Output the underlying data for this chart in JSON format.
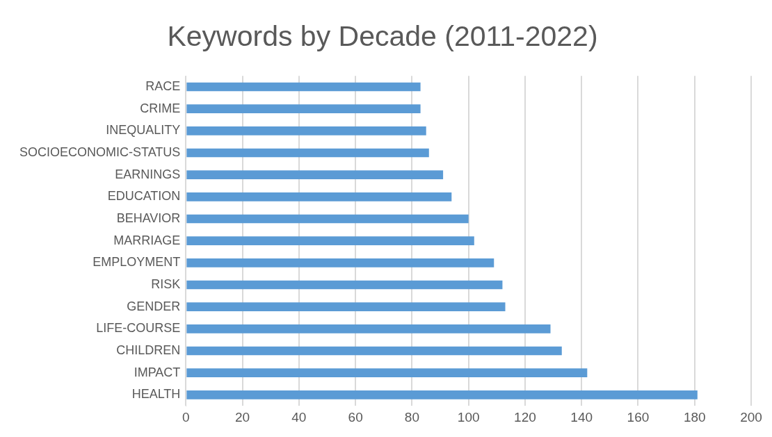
{
  "chart_data": {
    "type": "bar",
    "orientation": "horizontal",
    "title": "Keywords by Decade (2011-2022)",
    "categories": [
      "RACE",
      "CRIME",
      "INEQUALITY",
      "SOCIOECONOMIC-STATUS",
      "EARNINGS",
      "EDUCATION",
      "BEHAVIOR",
      "MARRIAGE",
      "EMPLOYMENT",
      "RISK",
      "GENDER",
      "LIFE-COURSE",
      "CHILDREN",
      "IMPACT",
      "HEALTH"
    ],
    "values": [
      83,
      83,
      85,
      86,
      91,
      94,
      100,
      102,
      109,
      112,
      113,
      129,
      133,
      142,
      181
    ],
    "color": "#5b9bd5",
    "xlim": [
      0,
      200
    ],
    "xticks": [
      0,
      20,
      40,
      60,
      80,
      100,
      120,
      140,
      160,
      180,
      200
    ],
    "grid": "x",
    "legend": false
  }
}
